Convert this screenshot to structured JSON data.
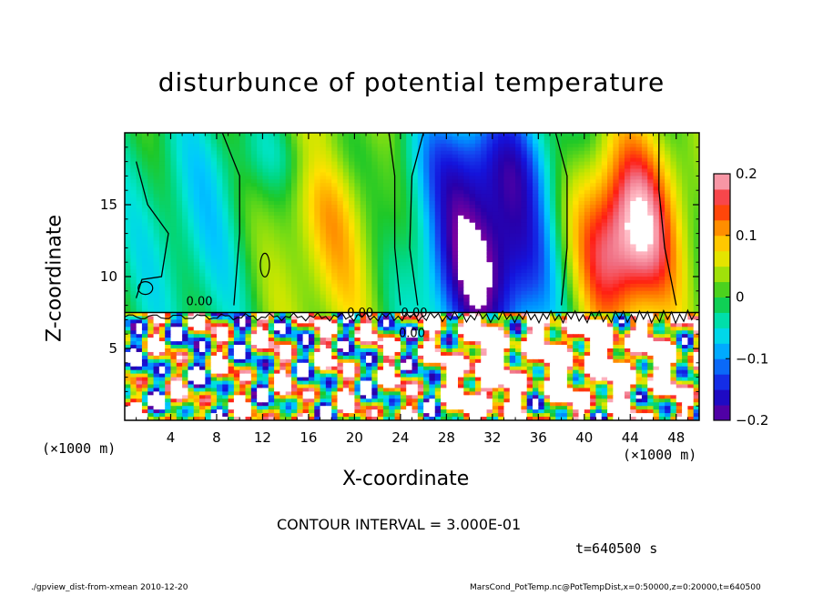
{
  "chart_data": {
    "type": "heatmap",
    "title": "disturbunce of potential temperature",
    "xlabel": "X-coordinate",
    "ylabel": "Z-coordinate",
    "x_unit_left": "(×1000 m)",
    "x_unit_right": "(×1000 m)",
    "xlim": [
      0,
      50
    ],
    "ylim": [
      0,
      20
    ],
    "x_ticks": [
      4,
      8,
      12,
      16,
      20,
      24,
      28,
      32,
      36,
      40,
      44,
      48
    ],
    "y_ticks": [
      5,
      10,
      15
    ],
    "colorbar": {
      "range": [
        -0.2,
        0.2
      ],
      "ticks": [
        {
          "value": 0.2,
          "label": "0.2"
        },
        {
          "value": 0.1,
          "label": "0.1"
        },
        {
          "value": 0,
          "label": "0"
        },
        {
          "value": -0.1,
          "label": "−0.1"
        },
        {
          "value": -0.2,
          "label": "−0.2"
        }
      ]
    },
    "contour_labels": [
      {
        "x": 6.5,
        "z": 8.0,
        "text": "0.00"
      },
      {
        "x": 20.5,
        "z": 7.2,
        "text": "0.00"
      },
      {
        "x": 25.2,
        "z": 7.2,
        "text": "0.00"
      },
      {
        "x": 25.0,
        "z": 5.8,
        "text": "0.00"
      }
    ],
    "contour_interval": "CONTOUR INTERVAL = 3.000E-01",
    "time": "t=640500 s"
  },
  "footer": {
    "left": "./gpview_dist-from-xmean  2010-12-20",
    "right": "MarsCond_PotTemp.nc@PotTempDist,x=0:50000,z=0:20000,t=640500"
  }
}
